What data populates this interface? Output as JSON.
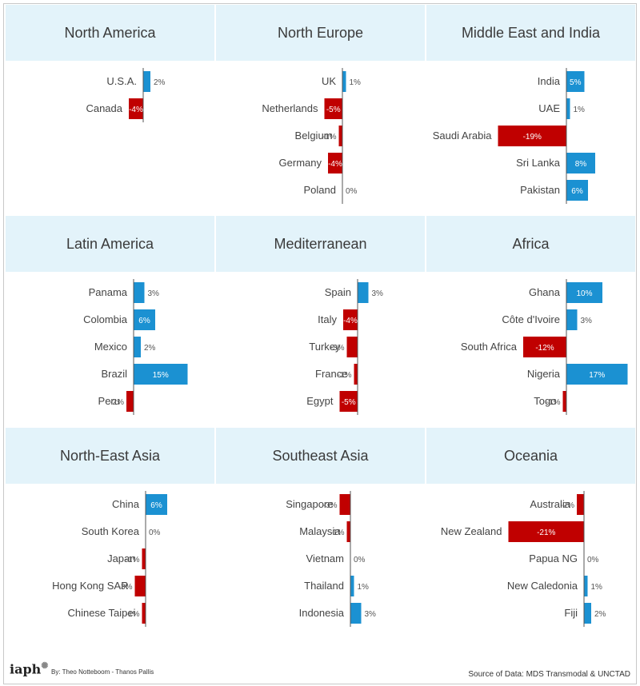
{
  "colors": {
    "positive": "#1b91d2",
    "negative": "#c00000",
    "header_bg": "#e3f3fa"
  },
  "footer": {
    "logo": "iaph",
    "credit": "By: Theo Notteboom - Thanos Pallis",
    "source": "Source of Data: MDS Transmodal & UNCTAD"
  },
  "chart_data": [
    {
      "type": "bar",
      "orientation": "horizontal",
      "title": "North America",
      "categories": [
        "U.S.A.",
        "Canada"
      ],
      "values": [
        2,
        -4
      ],
      "unit": "%"
    },
    {
      "type": "bar",
      "orientation": "horizontal",
      "title": "North Europe",
      "categories": [
        "UK",
        "Netherlands",
        "Belgium",
        "Germany",
        "Poland"
      ],
      "values": [
        1,
        -5,
        -1,
        -4,
        0
      ],
      "unit": "%"
    },
    {
      "type": "bar",
      "orientation": "horizontal",
      "title": "Middle East and India",
      "categories": [
        "India",
        "UAE",
        "Saudi Arabia",
        "Sri Lanka",
        "Pakistan"
      ],
      "values": [
        5,
        1,
        -19,
        8,
        6
      ],
      "unit": "%"
    },
    {
      "type": "bar",
      "orientation": "horizontal",
      "title": "Latin America",
      "categories": [
        "Panama",
        "Colombia",
        "Mexico",
        "Brazil",
        "Peru"
      ],
      "values": [
        3,
        6,
        2,
        15,
        -2
      ],
      "unit": "%"
    },
    {
      "type": "bar",
      "orientation": "horizontal",
      "title": "Mediterranean",
      "categories": [
        "Spain",
        "Italy",
        "Turkey",
        "France",
        "Egypt"
      ],
      "values": [
        3,
        -4,
        -3,
        -1,
        -5
      ],
      "unit": "%"
    },
    {
      "type": "bar",
      "orientation": "horizontal",
      "title": "Africa",
      "categories": [
        "Ghana",
        "Côte d'Ivoire",
        "South Africa",
        "Nigeria",
        "Togo"
      ],
      "values": [
        10,
        3,
        -12,
        17,
        -1
      ],
      "unit": "%"
    },
    {
      "type": "bar",
      "orientation": "horizontal",
      "title": "North-East Asia",
      "categories": [
        "China",
        "South Korea",
        "Japan",
        "Hong Kong SAR",
        "Chinese Taipei"
      ],
      "values": [
        6,
        0,
        -1,
        -3,
        -1
      ],
      "unit": "%"
    },
    {
      "type": "bar",
      "orientation": "horizontal",
      "title": "Southeast Asia",
      "categories": [
        "Singapore",
        "Malaysia",
        "Vietnam",
        "Thailand",
        "Indonesia"
      ],
      "values": [
        -3,
        -1,
        0,
        1,
        3
      ],
      "unit": "%"
    },
    {
      "type": "bar",
      "orientation": "horizontal",
      "title": "Oceania",
      "categories": [
        "Australia",
        "New Zealand",
        "Papua NG",
        "New Caledonia",
        "Fiji"
      ],
      "values": [
        -2,
        -21,
        0,
        1,
        2
      ],
      "unit": "%"
    }
  ]
}
